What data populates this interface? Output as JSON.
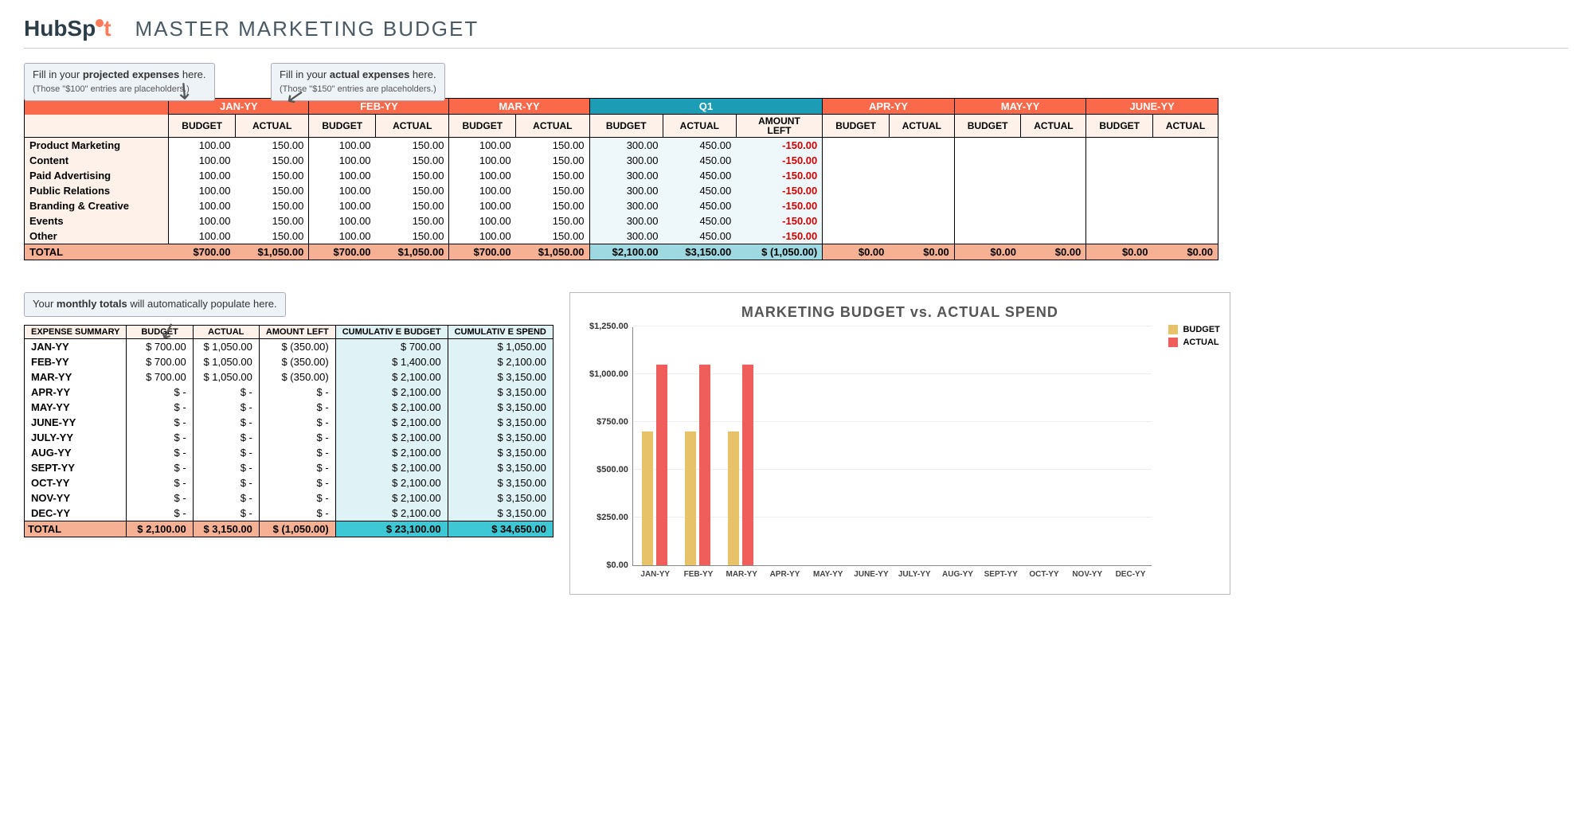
{
  "brand": {
    "part1": "HubSp",
    "part2": "t"
  },
  "page_title": "MASTER MARKETING BUDGET",
  "callouts": {
    "projected": {
      "main": "Fill in your ",
      "bold": "projected expenses",
      "rest": " here.",
      "sub": "(Those \"$100\" entries are placeholders.)"
    },
    "actual": {
      "main": "Fill in your ",
      "bold": "actual expenses",
      "rest": " here.",
      "sub": "(Those \"$150\" entries are placeholders.)"
    },
    "monthly": {
      "main": "Your ",
      "bold": "monthly totals",
      "rest": " will automatically populate here."
    }
  },
  "colors": {
    "month_header": "#f9694a",
    "q1_header": "#1c9db5",
    "sub_header_bg": "#fdf1e9",
    "total_row_bg": "#f6b194",
    "negative": "#cc0000",
    "cum_bg": "#dff2f5",
    "cum_total_bg": "#3ec7d4",
    "budget_bar": "#e8c269",
    "actual_bar": "#ef5e5a"
  },
  "main_table": {
    "months": [
      "JAN-YY",
      "FEB-YY",
      "MAR-YY"
    ],
    "q1_label": "Q1",
    "empty_months": [
      "APR-YY",
      "MAY-YY",
      "JUNE-YY"
    ],
    "sub_headers": [
      "BUDGET",
      "ACTUAL"
    ],
    "q1_sub_headers": [
      "BUDGET",
      "ACTUAL",
      "AMOUNT LEFT"
    ],
    "categories": [
      "Product Marketing",
      "Content",
      "Paid Advertising",
      "Public Relations",
      "Branding & Creative",
      "Events",
      "Other"
    ],
    "row_values": {
      "budget": "100.00",
      "actual": "150.00",
      "q1_budget": "300.00",
      "q1_actual": "450.00",
      "q1_left": "-150.00"
    },
    "totals": {
      "label": "TOTAL",
      "month_budget": "$700.00",
      "month_actual": "$1,050.00",
      "q1_budget": "$2,100.00",
      "q1_actual": "$3,150.00",
      "q1_left": "$ (1,050.00)",
      "empty": "$0.00"
    }
  },
  "summary_table": {
    "title": "EXPENSE SUMMARY",
    "headers": [
      "BUDGET",
      "ACTUAL",
      "AMOUNT LEFT",
      "CUMULATIV E BUDGET",
      "CUMULATIV E SPEND"
    ],
    "rows": [
      {
        "m": "JAN-YY",
        "b": "700.00",
        "a": "1,050.00",
        "l": "(350.00)",
        "cb": "700.00",
        "cs": "1,050.00"
      },
      {
        "m": "FEB-YY",
        "b": "700.00",
        "a": "1,050.00",
        "l": "(350.00)",
        "cb": "1,400.00",
        "cs": "2,100.00"
      },
      {
        "m": "MAR-YY",
        "b": "700.00",
        "a": "1,050.00",
        "l": "(350.00)",
        "cb": "2,100.00",
        "cs": "3,150.00"
      },
      {
        "m": "APR-YY",
        "b": "-",
        "a": "-",
        "l": "-",
        "cb": "2,100.00",
        "cs": "3,150.00"
      },
      {
        "m": "MAY-YY",
        "b": "-",
        "a": "-",
        "l": "-",
        "cb": "2,100.00",
        "cs": "3,150.00"
      },
      {
        "m": "JUNE-YY",
        "b": "-",
        "a": "-",
        "l": "-",
        "cb": "2,100.00",
        "cs": "3,150.00"
      },
      {
        "m": "JULY-YY",
        "b": "-",
        "a": "-",
        "l": "-",
        "cb": "2,100.00",
        "cs": "3,150.00"
      },
      {
        "m": "AUG-YY",
        "b": "-",
        "a": "-",
        "l": "-",
        "cb": "2,100.00",
        "cs": "3,150.00"
      },
      {
        "m": "SEPT-YY",
        "b": "-",
        "a": "-",
        "l": "-",
        "cb": "2,100.00",
        "cs": "3,150.00"
      },
      {
        "m": "OCT-YY",
        "b": "-",
        "a": "-",
        "l": "-",
        "cb": "2,100.00",
        "cs": "3,150.00"
      },
      {
        "m": "NOV-YY",
        "b": "-",
        "a": "-",
        "l": "-",
        "cb": "2,100.00",
        "cs": "3,150.00"
      },
      {
        "m": "DEC-YY",
        "b": "-",
        "a": "-",
        "l": "-",
        "cb": "2,100.00",
        "cs": "3,150.00"
      }
    ],
    "total": {
      "label": "TOTAL",
      "b": "2,100.00",
      "a": "3,150.00",
      "l": "(1,050.00)",
      "cb": "23,100.00",
      "cs": "34,650.00"
    }
  },
  "chart": {
    "title": "MARKETING BUDGET vs. ACTUAL SPEND",
    "type": "bar",
    "y_max": 1250,
    "y_ticks": [
      "$0.00",
      "$250.00",
      "$500.00",
      "$750.00",
      "$1,000.00",
      "$1,250.00"
    ],
    "y_tick_vals": [
      0,
      250,
      500,
      750,
      1000,
      1250
    ],
    "x_labels": [
      "JAN-YY",
      "FEB-YY",
      "MAR-YY",
      "APR-YY",
      "MAY-YY",
      "JUNE-YY",
      "JULY-YY",
      "AUG-YY",
      "SEPT-YY",
      "OCT-YY",
      "NOV-YY",
      "DEC-YY"
    ],
    "series": [
      {
        "name": "BUDGET",
        "color": "#e8c269",
        "values": [
          700,
          700,
          700,
          0,
          0,
          0,
          0,
          0,
          0,
          0,
          0,
          0
        ]
      },
      {
        "name": "ACTUAL",
        "color": "#ef5e5a",
        "values": [
          1050,
          1050,
          1050,
          0,
          0,
          0,
          0,
          0,
          0,
          0,
          0,
          0
        ]
      }
    ]
  }
}
